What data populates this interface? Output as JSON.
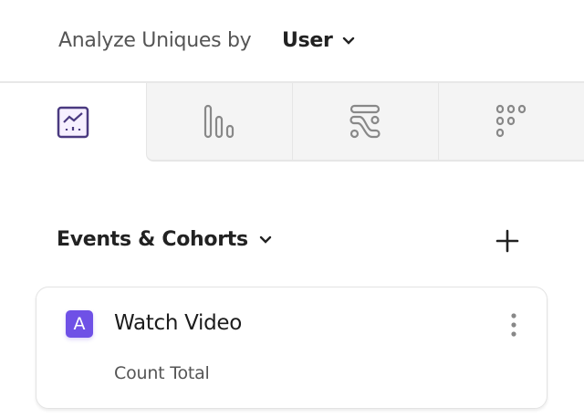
{
  "header": {
    "analyze_label": "Analyze Uniques by",
    "selected_value": "User"
  },
  "tabs": [
    {
      "icon": "line-chart-icon",
      "active": true
    },
    {
      "icon": "bar-chart-icon",
      "active": false
    },
    {
      "icon": "flows-icon",
      "active": false
    },
    {
      "icon": "retention-grid-icon",
      "active": false
    }
  ],
  "section": {
    "title": "Events & Cohorts"
  },
  "events": [
    {
      "letter": "A",
      "name": "Watch Video",
      "measure": "Count Total"
    }
  ],
  "colors": {
    "accent": "#6f51e6"
  }
}
